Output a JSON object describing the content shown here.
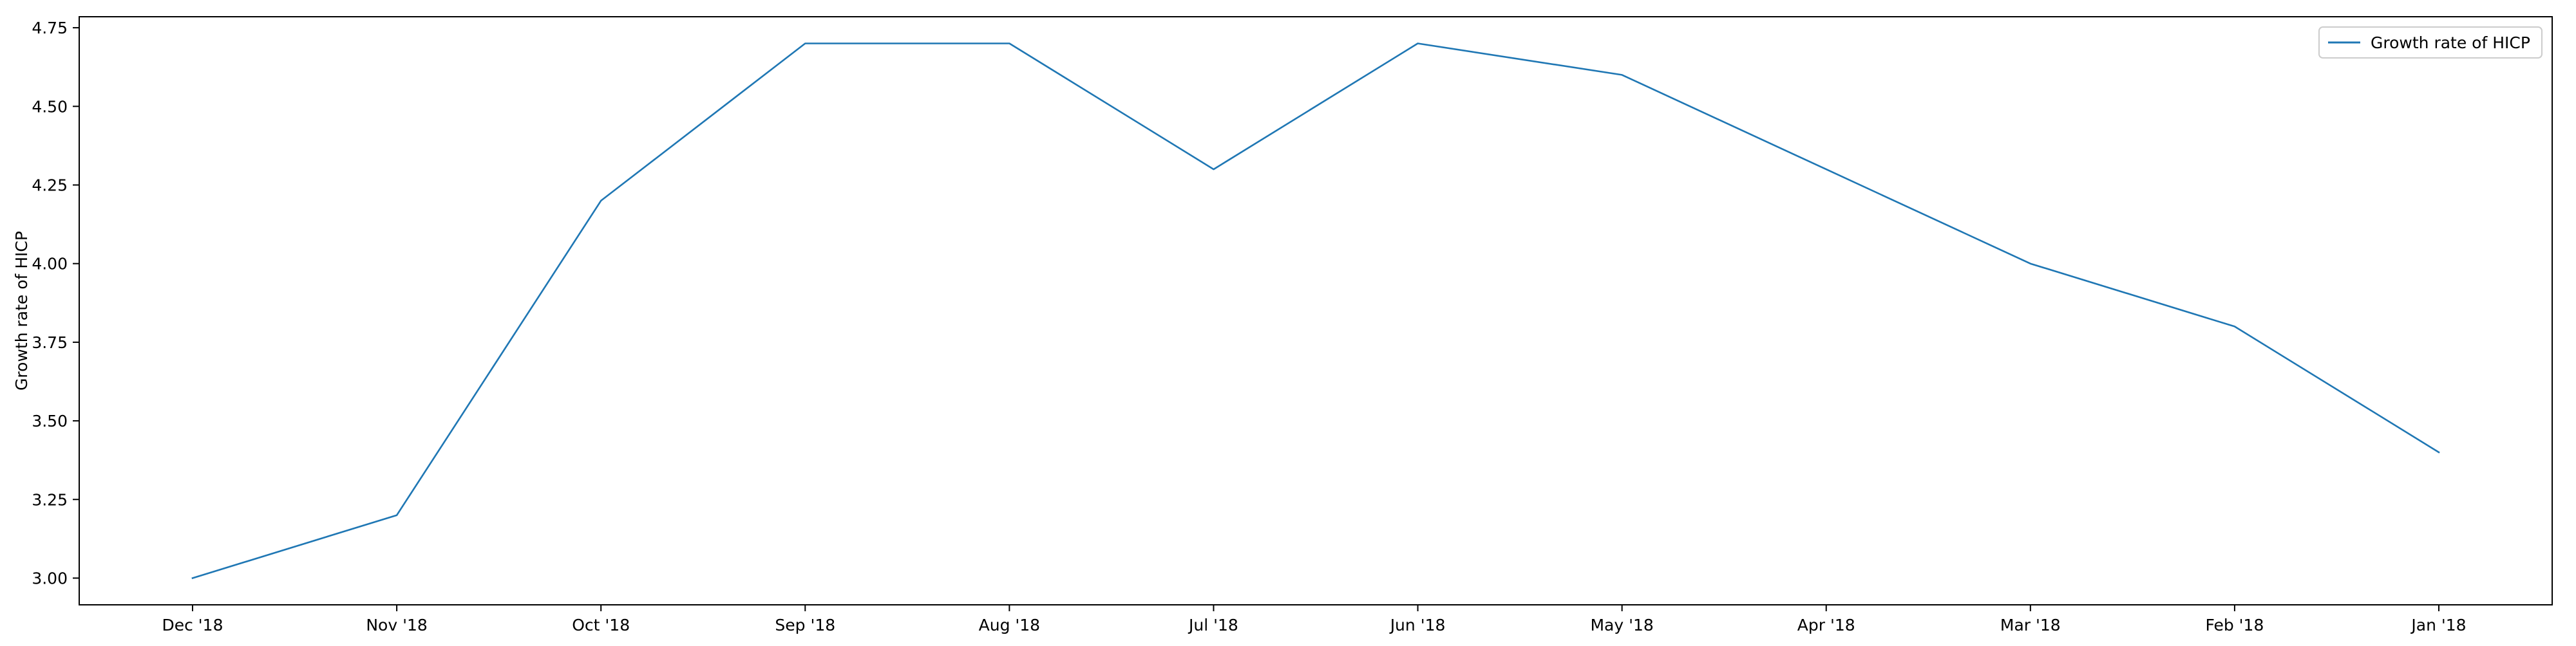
{
  "chart_data": {
    "type": "line",
    "title": "",
    "xlabel": "",
    "ylabel": "Growth rate of HICP",
    "categories": [
      "Dec '18",
      "Nov '18",
      "Oct '18",
      "Sep '18",
      "Aug '18",
      "Jul '18",
      "Jun '18",
      "May '18",
      "Apr '18",
      "Mar '18",
      "Feb '18",
      "Jan '18"
    ],
    "series": [
      {
        "name": "Growth rate of HICP",
        "color": "#1f77b4",
        "values": [
          3.0,
          3.2,
          4.2,
          4.7,
          4.7,
          4.3,
          4.7,
          4.6,
          4.3,
          4.0,
          3.8,
          3.4
        ]
      }
    ],
    "ylim": [
      2.915,
      4.785
    ],
    "yticks": [
      3.0,
      3.25,
      3.5,
      3.75,
      4.0,
      4.25,
      4.5,
      4.75
    ],
    "ytick_labels": [
      "3.00",
      "3.25",
      "3.50",
      "3.75",
      "4.00",
      "4.25",
      "4.50",
      "4.75"
    ],
    "grid": false,
    "legend_position": "top-right"
  }
}
